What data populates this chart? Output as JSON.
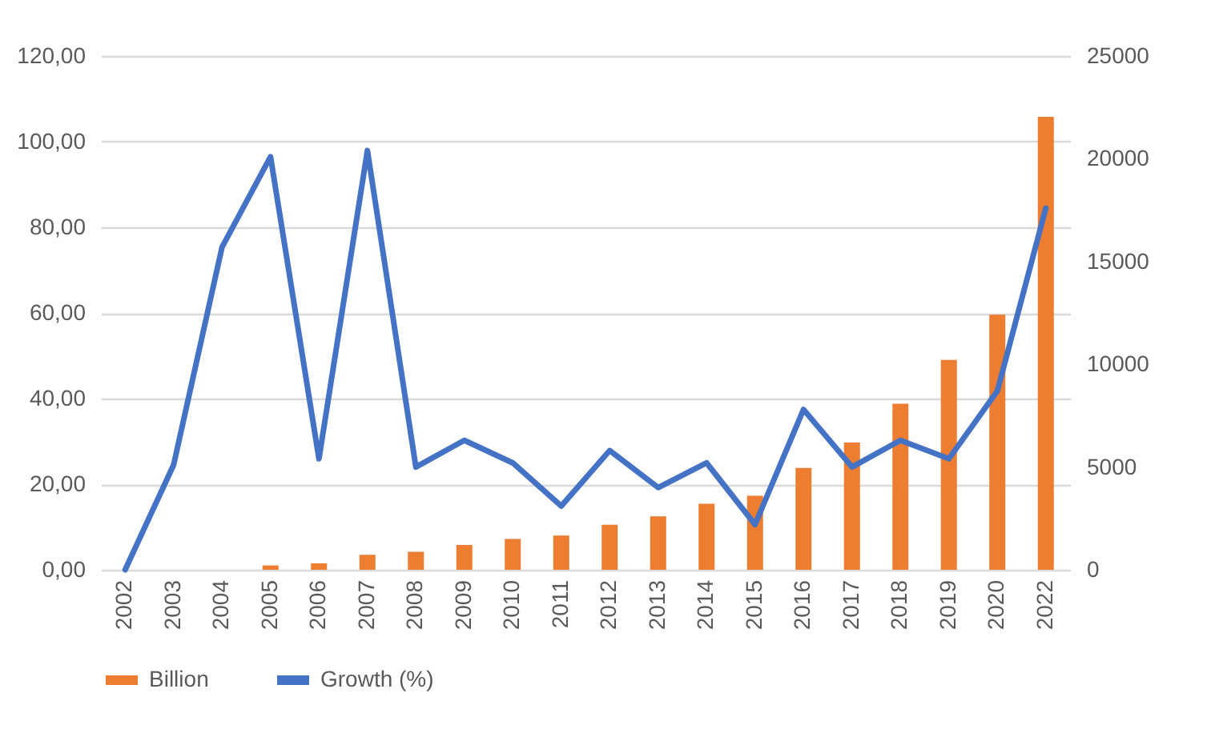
{
  "chart_data": {
    "type": "bar",
    "categories": [
      "2002",
      "2003",
      "2004",
      "2005",
      "2006",
      "2007",
      "2008",
      "2009",
      "2010",
      "2011",
      "2012",
      "2013",
      "2014",
      "2015",
      "2016",
      "2017",
      "2018",
      "2019",
      "2020",
      "2022"
    ],
    "series": [
      {
        "name": "Billion",
        "color": "#ed7d31",
        "values": [
          0,
          0,
          0,
          1.0,
          1.5,
          3.5,
          4.2,
          5.8,
          7.2,
          8.0,
          10.5,
          12.5,
          15.4,
          17.3,
          23.8,
          29.7,
          38.8,
          49.0,
          59.6,
          105.8
        ]
      },
      {
        "name": "Growth (%)",
        "type": "line",
        "axis": "y2",
        "color": "#4472c4",
        "values": [
          0,
          5100,
          15700,
          20100,
          5400,
          20400,
          5000,
          6300,
          5200,
          3100,
          5800,
          4000,
          5200,
          2200,
          7800,
          5000,
          6300,
          5400,
          8700,
          17600
        ]
      }
    ],
    "ylim": [
      0,
      120
    ],
    "yticks": [
      {
        "value": 0,
        "label": "0,00"
      },
      {
        "value": 20,
        "label": "20,00"
      },
      {
        "value": 40,
        "label": "40,00"
      },
      {
        "value": 60,
        "label": "60,00"
      },
      {
        "value": 80,
        "label": "80,00"
      },
      {
        "value": 100,
        "label": "100,00"
      },
      {
        "value": 120,
        "label": "120,00"
      }
    ],
    "y2lim": [
      0,
      25000
    ],
    "y2ticks": [
      0,
      5000,
      10000,
      15000,
      20000,
      25000
    ],
    "grid": "y",
    "legend": "bottom"
  }
}
